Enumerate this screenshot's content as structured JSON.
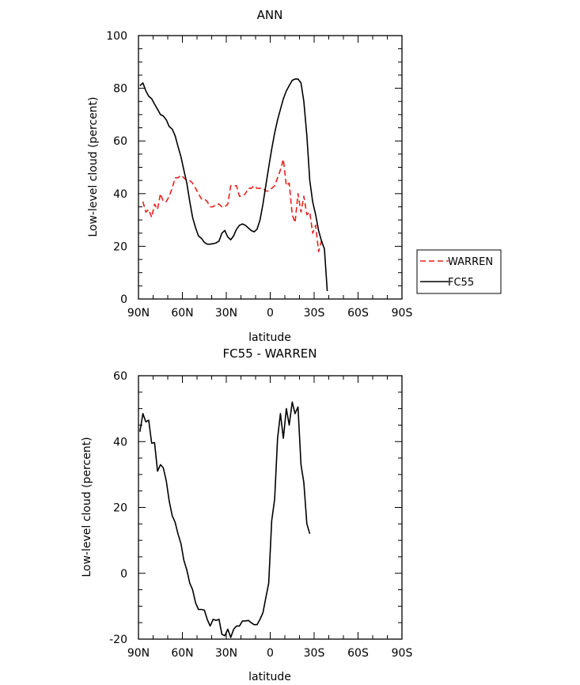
{
  "chart_data": [
    {
      "type": "line",
      "title": "ANN",
      "xlabel": "latitude",
      "ylabel": "Low-level cloud (percent)",
      "xlim": [
        -90,
        90
      ],
      "ylim": [
        0,
        100
      ],
      "x_tick_labels": [
        "90N",
        "60N",
        "30N",
        "0",
        "30S",
        "60S",
        "90S"
      ],
      "y_tick_labels": [
        "0",
        "20",
        "40",
        "60",
        "80",
        "100"
      ],
      "legend_position": "right",
      "series": [
        {
          "name": "WARREN",
          "color": "#e8201c",
          "dash": "dashed",
          "points": [
            [
              -87,
              37
            ],
            [
              -85,
              33
            ],
            [
              -83,
              34
            ],
            [
              -81,
              31
            ],
            [
              -79,
              36
            ],
            [
              -77,
              34
            ],
            [
              -75,
              40
            ],
            [
              -73,
              37
            ],
            [
              -71,
              37
            ],
            [
              -69,
              39
            ],
            [
              -67,
              42
            ],
            [
              -65,
              46
            ],
            [
              -63,
              46
            ],
            [
              -61,
              47
            ],
            [
              -59,
              46
            ],
            [
              -57,
              45
            ],
            [
              -55,
              45
            ],
            [
              -53,
              44
            ],
            [
              -51,
              42
            ],
            [
              -49,
              40
            ],
            [
              -47,
              38
            ],
            [
              -45,
              38
            ],
            [
              -43,
              37
            ],
            [
              -41,
              35
            ],
            [
              -39,
              35
            ],
            [
              -37,
              36
            ],
            [
              -35,
              36
            ],
            [
              -33,
              35
            ],
            [
              -31,
              35
            ],
            [
              -29,
              36
            ],
            [
              -27,
              43
            ],
            [
              -25,
              43
            ],
            [
              -23,
              43
            ],
            [
              -21,
              39
            ],
            [
              -19,
              39
            ],
            [
              -17,
              40
            ],
            [
              -15,
              42
            ],
            [
              -13,
              42
            ],
            [
              -11,
              43
            ],
            [
              -9,
              42
            ],
            [
              -7,
              42
            ],
            [
              -5,
              42
            ],
            [
              -3,
              41
            ],
            [
              -1,
              41
            ],
            [
              1,
              42
            ],
            [
              3,
              43
            ],
            [
              5,
              46
            ],
            [
              7,
              49
            ],
            [
              9,
              53
            ],
            [
              11,
              43
            ],
            [
              13,
              44
            ],
            [
              15,
              32
            ],
            [
              17,
              29
            ],
            [
              19,
              40
            ],
            [
              21,
              33
            ],
            [
              23,
              39
            ],
            [
              25,
              32
            ],
            [
              27,
              33
            ],
            [
              29,
              25
            ],
            [
              31,
              28
            ],
            [
              33,
              18
            ],
            [
              35,
              22
            ],
            [
              37,
              21
            ]
          ]
        },
        {
          "name": "FC55",
          "color": "#000000",
          "dash": "solid",
          "points": [
            [
              -89,
              81
            ],
            [
              -87,
              82
            ],
            [
              -85,
              79
            ],
            [
              -83,
              77
            ],
            [
              -81,
              76
            ],
            [
              -79,
              74
            ],
            [
              -77,
              72
            ],
            [
              -75,
              70
            ],
            [
              -73,
              69.5
            ],
            [
              -71,
              68
            ],
            [
              -69,
              65.5
            ],
            [
              -67,
              64.5
            ],
            [
              -65,
              62
            ],
            [
              -63,
              58
            ],
            [
              -61,
              54
            ],
            [
              -59,
              49
            ],
            [
              -57,
              44
            ],
            [
              -55,
              37
            ],
            [
              -53,
              31
            ],
            [
              -51,
              27
            ],
            [
              -49,
              24
            ],
            [
              -47,
              23
            ],
            [
              -45,
              21.5
            ],
            [
              -43,
              20.8
            ],
            [
              -41,
              20.8
            ],
            [
              -39,
              21
            ],
            [
              -37,
              21.3
            ],
            [
              -35,
              22
            ],
            [
              -33,
              25
            ],
            [
              -31,
              26
            ],
            [
              -29,
              23.5
            ],
            [
              -27,
              22.5
            ],
            [
              -25,
              24
            ],
            [
              -23,
              26.5
            ],
            [
              -21,
              28
            ],
            [
              -19,
              28.5
            ],
            [
              -17,
              28
            ],
            [
              -15,
              27
            ],
            [
              -13,
              26
            ],
            [
              -11,
              25.5
            ],
            [
              -9,
              26.5
            ],
            [
              -7,
              30
            ],
            [
              -5,
              36
            ],
            [
              -3,
              43
            ],
            [
              -1,
              50
            ],
            [
              1,
              57
            ],
            [
              3,
              63
            ],
            [
              5,
              68
            ],
            [
              7,
              72
            ],
            [
              9,
              76
            ],
            [
              11,
              79
            ],
            [
              13,
              81
            ],
            [
              15,
              83
            ],
            [
              17,
              83.5
            ],
            [
              19,
              83.5
            ],
            [
              21,
              82
            ],
            [
              23,
              75
            ],
            [
              25,
              62
            ],
            [
              27,
              45
            ],
            [
              29,
              37
            ],
            [
              31,
              32
            ],
            [
              33,
              26
            ],
            [
              35,
              22
            ],
            [
              37,
              19
            ],
            [
              39,
              3
            ]
          ]
        }
      ]
    },
    {
      "type": "line",
      "title": "FC55 - WARREN",
      "xlabel": "latitude",
      "ylabel": "Low-level cloud (percent)",
      "xlim": [
        -90,
        90
      ],
      "ylim": [
        -20,
        60
      ],
      "x_tick_labels": [
        "90N",
        "60N",
        "30N",
        "0",
        "30S",
        "60S",
        "90S"
      ],
      "y_tick_labels": [
        "-20",
        "0",
        "20",
        "40",
        "60"
      ],
      "series": [
        {
          "color": "#000000",
          "dash": "solid",
          "points": [
            [
              -89,
              43
            ],
            [
              -87,
              48.5
            ],
            [
              -85,
              46
            ],
            [
              -83,
              46.5
            ],
            [
              -81,
              39.5
            ],
            [
              -79,
              39.7
            ],
            [
              -77,
              31
            ],
            [
              -75,
              33
            ],
            [
              -73,
              32
            ],
            [
              -71,
              28
            ],
            [
              -69,
              22
            ],
            [
              -67,
              17.5
            ],
            [
              -65,
              15.5
            ],
            [
              -63,
              12
            ],
            [
              -61,
              9
            ],
            [
              -59,
              4
            ],
            [
              -57,
              1
            ],
            [
              -55,
              -3
            ],
            [
              -53,
              -5
            ],
            [
              -51,
              -9
            ],
            [
              -49,
              -11
            ],
            [
              -47,
              -11
            ],
            [
              -45,
              -11.2
            ],
            [
              -43,
              -14
            ],
            [
              -41,
              -16
            ],
            [
              -39,
              -14
            ],
            [
              -37,
              -14.3
            ],
            [
              -35,
              -14
            ],
            [
              -33,
              -18.5
            ],
            [
              -31,
              -19
            ],
            [
              -29,
              -17
            ],
            [
              -27,
              -19.5
            ],
            [
              -25,
              -17
            ],
            [
              -23,
              -16
            ],
            [
              -21,
              -16
            ],
            [
              -19,
              -14.5
            ],
            [
              -17,
              -14.5
            ],
            [
              -15,
              -14.3
            ],
            [
              -13,
              -15
            ],
            [
              -11,
              -15.6
            ],
            [
              -9,
              -15.6
            ],
            [
              -7,
              -14
            ],
            [
              -5,
              -12
            ],
            [
              -3,
              -7.5
            ],
            [
              -1,
              -3
            ],
            [
              1,
              16
            ],
            [
              3,
              22.5
            ],
            [
              5,
              41
            ],
            [
              7,
              48.5
            ],
            [
              9,
              41
            ],
            [
              11,
              50
            ],
            [
              13,
              45
            ],
            [
              15,
              52
            ],
            [
              17,
              48.5
            ],
            [
              19,
              50.5
            ],
            [
              21,
              33
            ],
            [
              23,
              27.5
            ],
            [
              25,
              15
            ],
            [
              27,
              12
            ]
          ]
        }
      ]
    }
  ]
}
